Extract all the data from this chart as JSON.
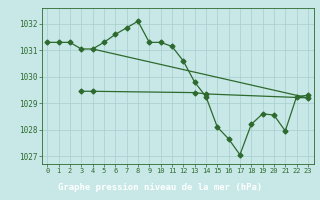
{
  "series1": {
    "x": [
      0,
      1,
      2,
      3,
      4,
      5,
      6,
      7,
      8,
      9,
      10,
      11,
      12,
      13,
      14,
      15,
      16,
      17,
      18,
      19,
      20,
      21,
      22,
      23
    ],
    "y": [
      1031.3,
      1031.3,
      1031.3,
      1031.05,
      1031.05,
      1031.3,
      1031.6,
      1031.85,
      1032.1,
      1031.3,
      1031.3,
      1031.15,
      1030.6,
      1029.8,
      1029.25,
      1028.1,
      1027.65,
      1027.05,
      1028.2,
      1028.6,
      1028.55,
      1027.95,
      1029.25,
      1029.3
    ]
  },
  "series2": {
    "x": [
      3,
      4,
      13,
      14,
      23
    ],
    "y": [
      1029.45,
      1029.45,
      1029.4,
      1029.35,
      1029.2
    ]
  },
  "series3": {
    "x": [
      4,
      23
    ],
    "y": [
      1031.05,
      1029.2
    ]
  },
  "line_color": "#2d6a2d",
  "bg_color": "#c8e8e8",
  "grid_color": "#a8cccc",
  "xlabel": "Graphe pression niveau de la mer (hPa)",
  "xlabel_bg": "#2d6a2d",
  "xlabel_color": "#ffffff",
  "xlim": [
    -0.5,
    23.5
  ],
  "ylim": [
    1026.7,
    1032.6
  ],
  "yticks": [
    1027,
    1028,
    1029,
    1030,
    1031,
    1032
  ],
  "xticks": [
    0,
    1,
    2,
    3,
    4,
    5,
    6,
    7,
    8,
    9,
    10,
    11,
    12,
    13,
    14,
    15,
    16,
    17,
    18,
    19,
    20,
    21,
    22,
    23
  ],
  "marker": "D",
  "markersize": 2.5,
  "linewidth": 0.9
}
